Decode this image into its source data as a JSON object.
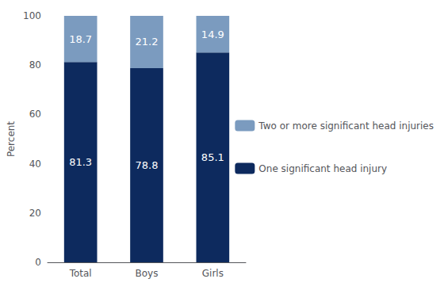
{
  "chart_data": {
    "type": "bar",
    "ylabel": "Percent",
    "categories": [
      "Total",
      "Boys",
      "Girls"
    ],
    "series": [
      {
        "name": "One significant head injury",
        "color": "#0d2a5e",
        "values": [
          81.3,
          78.8,
          85.1
        ]
      },
      {
        "name": "Two or more significant head injuries",
        "color": "#7b9bbf",
        "values": [
          18.7,
          21.2,
          14.9
        ]
      }
    ],
    "stacked": true,
    "data_labels": true,
    "legend": "right",
    "grid": false,
    "ylim": [
      0,
      100
    ],
    "yticks": [
      0,
      20,
      40,
      60,
      80,
      100
    ]
  }
}
